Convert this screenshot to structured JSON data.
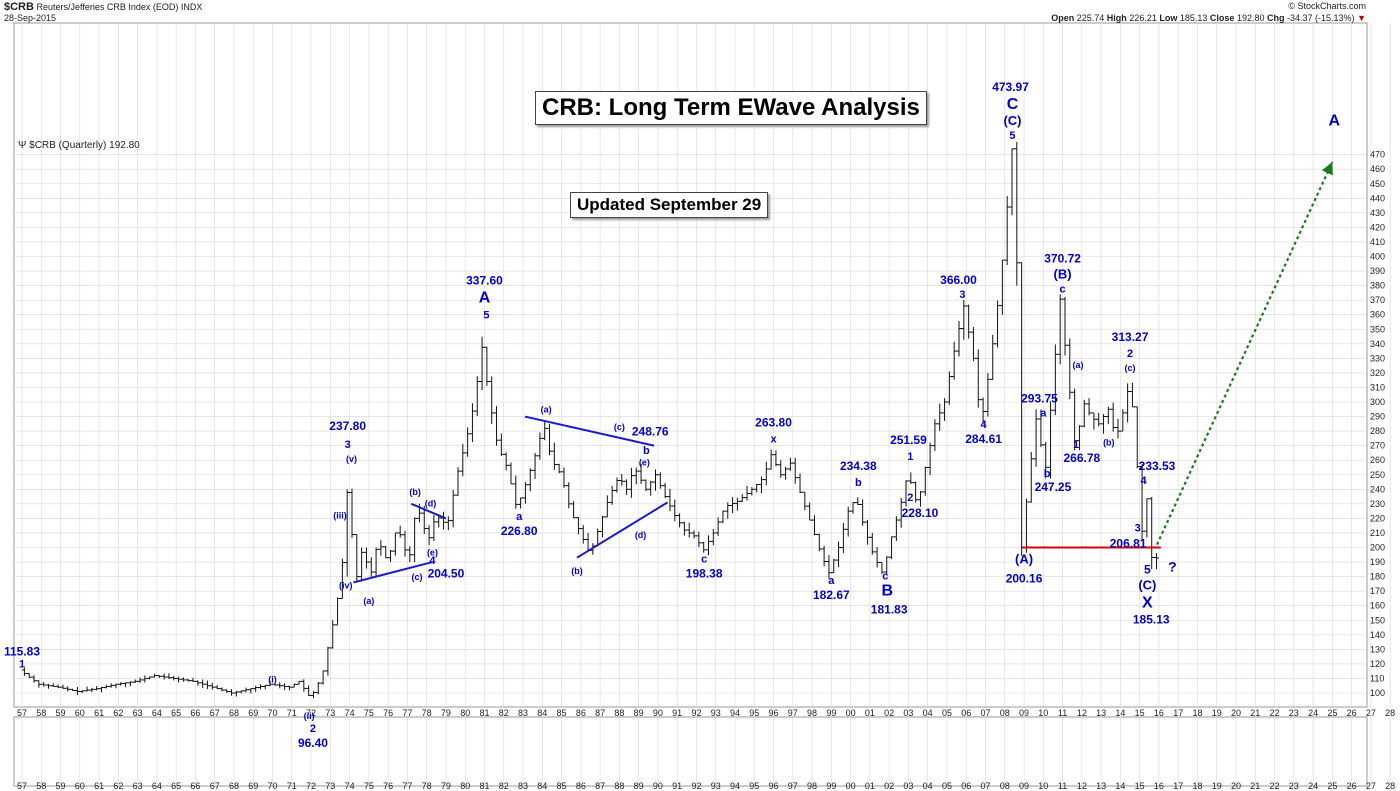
{
  "header": {
    "symbol": "$CRB",
    "name": "Reuters/Jefferies CRB Index (EOD)",
    "exchange": "INDX",
    "date": "28-Sep-2015",
    "copyright": "© StockCharts.com",
    "open_label": "Open",
    "open": "225.74",
    "high_label": "High",
    "high": "226.21",
    "low_label": "Low",
    "low": "185.13",
    "close_label": "Close",
    "close": "192.80",
    "chg_label": "Chg",
    "chg": "-34.37 (-15.13%)"
  },
  "legend_text": "$CRB (Quarterly) 192.80",
  "title_box": "CRB: Long Term EWave Analysis",
  "update_box": "Updated September 29",
  "colors": {
    "bars": "#111111",
    "labels": "#0000cc",
    "trendlines": "#1a1acc",
    "support": "#dd0000",
    "projection": "#1a7a1a",
    "grid": "#d8d8d8"
  },
  "chart_data": {
    "type": "ohlc",
    "ylim": [
      90,
      480
    ],
    "y_ticks": [
      100,
      110,
      120,
      130,
      140,
      150,
      160,
      170,
      180,
      190,
      200,
      210,
      220,
      230,
      240,
      250,
      260,
      270,
      280,
      290,
      300,
      310,
      320,
      330,
      340,
      350,
      360,
      370,
      380,
      390,
      400,
      410,
      420,
      430,
      440,
      450,
      460,
      470
    ],
    "x_ticks": [
      "57",
      "58",
      "59",
      "60",
      "61",
      "62",
      "63",
      "64",
      "65",
      "66",
      "67",
      "68",
      "69",
      "70",
      "71",
      "72",
      "73",
      "74",
      "75",
      "76",
      "77",
      "78",
      "79",
      "80",
      "81",
      "82",
      "83",
      "84",
      "85",
      "86",
      "87",
      "88",
      "89",
      "90",
      "91",
      "92",
      "93",
      "94",
      "95",
      "96",
      "97",
      "98",
      "99",
      "00",
      "01",
      "02",
      "03",
      "04",
      "05",
      "06",
      "07",
      "08",
      "09",
      "10",
      "11",
      "12",
      "13",
      "14",
      "15",
      "16",
      "17",
      "18",
      "19",
      "20",
      "21",
      "22",
      "23",
      "24",
      "25",
      "26",
      "27",
      "28"
    ],
    "price_path": [
      [
        1957.0,
        115.8
      ],
      [
        1958.0,
        106
      ],
      [
        1959.0,
        104
      ],
      [
        1960.0,
        101
      ],
      [
        1961.0,
        103
      ],
      [
        1962.0,
        106
      ],
      [
        1963.0,
        108
      ],
      [
        1964.0,
        112
      ],
      [
        1965.0,
        110
      ],
      [
        1966.0,
        108
      ],
      [
        1967.0,
        104
      ],
      [
        1968.0,
        100
      ],
      [
        1969.0,
        103
      ],
      [
        1970.0,
        106
      ],
      [
        1971.0,
        104
      ],
      [
        1971.5,
        108
      ],
      [
        1972.1,
        96.4
      ],
      [
        1972.7,
        112
      ],
      [
        1973.3,
        150
      ],
      [
        1973.7,
        180
      ],
      [
        1974.0,
        237.8
      ],
      [
        1974.5,
        180
      ],
      [
        1974.8,
        200
      ],
      [
        1975.2,
        180
      ],
      [
        1975.6,
        205
      ],
      [
        1976.1,
        190
      ],
      [
        1976.6,
        215
      ],
      [
        1977.2,
        190
      ],
      [
        1977.6,
        230
      ],
      [
        1978.2,
        204.5
      ],
      [
        1978.6,
        222
      ],
      [
        1979.2,
        215
      ],
      [
        1979.7,
        250
      ],
      [
        1980.2,
        275
      ],
      [
        1980.6,
        300
      ],
      [
        1981.0,
        337.6
      ],
      [
        1981.4,
        300
      ],
      [
        1981.8,
        270
      ],
      [
        1982.3,
        255
      ],
      [
        1982.8,
        226.8
      ],
      [
        1983.3,
        245
      ],
      [
        1983.8,
        265
      ],
      [
        1984.2,
        285
      ],
      [
        1984.6,
        260
      ],
      [
        1985.1,
        250
      ],
      [
        1985.6,
        225
      ],
      [
        1986.1,
        210
      ],
      [
        1986.6,
        195
      ],
      [
        1987.1,
        215
      ],
      [
        1987.6,
        235
      ],
      [
        1988.1,
        248.8
      ],
      [
        1988.5,
        240
      ],
      [
        1988.9,
        255
      ],
      [
        1989.5,
        240
      ],
      [
        1990.0,
        250
      ],
      [
        1990.5,
        235
      ],
      [
        1991.0,
        222
      ],
      [
        1991.5,
        212
      ],
      [
        1992.0,
        208
      ],
      [
        1992.5,
        198.4
      ],
      [
        1993.0,
        210
      ],
      [
        1993.6,
        228
      ],
      [
        1994.3,
        232
      ],
      [
        1995.0,
        240
      ],
      [
        1995.6,
        248
      ],
      [
        1996.0,
        263.8
      ],
      [
        1996.5,
        250
      ],
      [
        1997.0,
        258
      ],
      [
        1997.5,
        238
      ],
      [
        1998.1,
        215
      ],
      [
        1998.6,
        195
      ],
      [
        1999.0,
        182.7
      ],
      [
        1999.5,
        200
      ],
      [
        2000.0,
        225
      ],
      [
        2000.4,
        234.4
      ],
      [
        2000.8,
        215
      ],
      [
        2001.3,
        195
      ],
      [
        2001.8,
        181.8
      ],
      [
        2002.2,
        205
      ],
      [
        2002.7,
        228.1
      ],
      [
        2003.1,
        251.6
      ],
      [
        2003.6,
        228.1
      ],
      [
        2004.0,
        255
      ],
      [
        2004.5,
        285
      ],
      [
        2005.0,
        300
      ],
      [
        2005.5,
        335
      ],
      [
        2006.0,
        366
      ],
      [
        2006.5,
        330
      ],
      [
        2006.9,
        284.6
      ],
      [
        2007.3,
        320
      ],
      [
        2007.7,
        360
      ],
      [
        2008.1,
        410
      ],
      [
        2008.5,
        474
      ],
      [
        2008.8,
        380
      ],
      [
        2009.0,
        200.2
      ],
      [
        2009.4,
        250
      ],
      [
        2009.8,
        293.8
      ],
      [
        2010.2,
        247.3
      ],
      [
        2010.6,
        310
      ],
      [
        2011.0,
        370.7
      ],
      [
        2011.4,
        320
      ],
      [
        2011.8,
        266.8
      ],
      [
        2012.2,
        300
      ],
      [
        2012.6,
        290
      ],
      [
        2013.0,
        285
      ],
      [
        2013.5,
        295
      ],
      [
        2013.9,
        275
      ],
      [
        2014.3,
        295
      ],
      [
        2014.6,
        313.3
      ],
      [
        2014.9,
        280
      ],
      [
        2015.2,
        206.8
      ],
      [
        2015.5,
        233.5
      ],
      [
        2015.8,
        185.1
      ],
      [
        2015.9,
        192.8
      ]
    ]
  },
  "annotations": [
    {
      "text": "115.83",
      "x": 1957.0,
      "y": 116,
      "dy": -14,
      "size": 12
    },
    {
      "text": "1",
      "x": 1957.0,
      "y": 116,
      "dy": -2,
      "size": 11
    },
    {
      "text": "(i)",
      "x": 1970.0,
      "y": 106,
      "dy": -2,
      "size": 9
    },
    {
      "text": "(ii)",
      "x": 1971.9,
      "y": 96,
      "dy": 20,
      "size": 9
    },
    {
      "text": "2",
      "x": 1972.1,
      "y": 96,
      "dy": 33,
      "size": 11
    },
    {
      "text": "96.40",
      "x": 1972.1,
      "y": 96,
      "dy": 48,
      "size": 12
    },
    {
      "text": "237.80",
      "x": 1973.9,
      "y": 238,
      "dy": -62,
      "size": 12
    },
    {
      "text": "3",
      "x": 1973.9,
      "y": 238,
      "dy": -44,
      "size": 11
    },
    {
      "text": "(v)",
      "x": 1974.1,
      "y": 238,
      "dy": -30,
      "size": 9
    },
    {
      "text": "(iii)",
      "x": 1973.5,
      "y": 213,
      "dy": -10,
      "size": 9
    },
    {
      "text": "(iv)",
      "x": 1973.8,
      "y": 180,
      "dy": 12,
      "size": 9
    },
    {
      "text": "(a)",
      "x": 1975.0,
      "y": 175,
      "dy": 20,
      "size": 9
    },
    {
      "text": "(b)",
      "x": 1977.4,
      "y": 228,
      "dy": -12,
      "size": 9
    },
    {
      "text": "(c)",
      "x": 1977.5,
      "y": 190,
      "dy": 18,
      "size": 9
    },
    {
      "text": "(d)",
      "x": 1978.2,
      "y": 224,
      "dy": -6,
      "size": 9
    },
    {
      "text": "(e)",
      "x": 1978.3,
      "y": 200,
      "dy": 8,
      "size": 9
    },
    {
      "text": "4",
      "x": 1978.3,
      "y": 190,
      "dy": 2,
      "size": 11
    },
    {
      "text": "204.50",
      "x": 1979.0,
      "y": 182,
      "dy": 4,
      "size": 12
    },
    {
      "text": "337.60",
      "x": 1981.0,
      "y": 338,
      "dy": -62,
      "size": 12
    },
    {
      "text": "A",
      "x": 1981.0,
      "y": 338,
      "dy": -44,
      "size": 16
    },
    {
      "text": "5",
      "x": 1981.1,
      "y": 338,
      "dy": -28,
      "size": 11
    },
    {
      "text": "a",
      "x": 1982.8,
      "y": 227,
      "dy": 12,
      "size": 11
    },
    {
      "text": "226.80",
      "x": 1982.8,
      "y": 227,
      "dy": 27,
      "size": 12
    },
    {
      "text": "(a)",
      "x": 1984.2,
      "y": 290,
      "dy": -4,
      "size": 9
    },
    {
      "text": "(c)",
      "x": 1988.0,
      "y": 278,
      "dy": -4,
      "size": 9
    },
    {
      "text": "248.76",
      "x": 1989.6,
      "y": 277,
      "dy": 0,
      "size": 12
    },
    {
      "text": "b",
      "x": 1989.4,
      "y": 263,
      "dy": -2,
      "size": 11
    },
    {
      "text": "(e)",
      "x": 1989.3,
      "y": 255,
      "dy": -2,
      "size": 9
    },
    {
      "text": "(b)",
      "x": 1985.8,
      "y": 190,
      "dy": 12,
      "size": 9
    },
    {
      "text": "(d)",
      "x": 1989.1,
      "y": 208,
      "dy": 2,
      "size": 9
    },
    {
      "text": "c",
      "x": 1992.4,
      "y": 198,
      "dy": 12,
      "size": 11
    },
    {
      "text": "198.38",
      "x": 1992.4,
      "y": 198,
      "dy": 27,
      "size": 12
    },
    {
      "text": "263.80",
      "x": 1996.0,
      "y": 264,
      "dy": -28,
      "size": 12
    },
    {
      "text": "x",
      "x": 1996.0,
      "y": 264,
      "dy": -12,
      "size": 11
    },
    {
      "text": "234.38",
      "x": 2000.4,
      "y": 234,
      "dy": -28,
      "size": 12
    },
    {
      "text": "b",
      "x": 2000.4,
      "y": 234,
      "dy": -12,
      "size": 11
    },
    {
      "text": "a",
      "x": 1999.0,
      "y": 183,
      "dy": 12,
      "size": 11
    },
    {
      "text": "182.67",
      "x": 1999.0,
      "y": 183,
      "dy": 27,
      "size": 12
    },
    {
      "text": "c",
      "x": 2001.8,
      "y": 182,
      "dy": 6,
      "size": 11
    },
    {
      "text": "B",
      "x": 2001.9,
      "y": 182,
      "dy": 22,
      "size": 16
    },
    {
      "text": "181.83",
      "x": 2002.0,
      "y": 182,
      "dy": 40,
      "size": 12
    },
    {
      "text": "251.59",
      "x": 2003.0,
      "y": 252,
      "dy": -28,
      "size": 12
    },
    {
      "text": "1",
      "x": 2003.1,
      "y": 252,
      "dy": -12,
      "size": 11
    },
    {
      "text": "2",
      "x": 2003.1,
      "y": 228,
      "dy": -6,
      "size": 11
    },
    {
      "text": "228.10",
      "x": 2003.6,
      "y": 228,
      "dy": 10,
      "size": 12
    },
    {
      "text": "366.00",
      "x": 2005.6,
      "y": 366,
      "dy": -22,
      "size": 12
    },
    {
      "text": "3",
      "x": 2005.8,
      "y": 366,
      "dy": -8,
      "size": 11
    },
    {
      "text": "4",
      "x": 2006.9,
      "y": 285,
      "dy": 4,
      "size": 11
    },
    {
      "text": "284.61",
      "x": 2006.9,
      "y": 285,
      "dy": 19,
      "size": 12
    },
    {
      "text": "473.97",
      "x": 2008.3,
      "y": 474,
      "dy": -58,
      "size": 12
    },
    {
      "text": "C",
      "x": 2008.4,
      "y": 474,
      "dy": -40,
      "size": 16
    },
    {
      "text": "(C)",
      "x": 2008.4,
      "y": 474,
      "dy": -24,
      "size": 13
    },
    {
      "text": "5",
      "x": 2008.4,
      "y": 474,
      "dy": -10,
      "size": 11
    },
    {
      "text": "(A)",
      "x": 2009.0,
      "y": 200,
      "dy": 16,
      "size": 13
    },
    {
      "text": "200.16",
      "x": 2009.0,
      "y": 200,
      "dy": 35,
      "size": 12
    },
    {
      "text": "293.75",
      "x": 2009.8,
      "y": 294,
      "dy": -8,
      "size": 12
    },
    {
      "text": "a",
      "x": 2010.0,
      "y": 294,
      "dy": 6,
      "size": 11
    },
    {
      "text": "b",
      "x": 2010.2,
      "y": 247,
      "dy": -2,
      "size": 11
    },
    {
      "text": "247.25",
      "x": 2010.5,
      "y": 247,
      "dy": 12,
      "size": 12
    },
    {
      "text": "370.72",
      "x": 2011.0,
      "y": 371,
      "dy": -36,
      "size": 12
    },
    {
      "text": "(B)",
      "x": 2011.0,
      "y": 371,
      "dy": -20,
      "size": 13
    },
    {
      "text": "c",
      "x": 2011.0,
      "y": 371,
      "dy": -6,
      "size": 11
    },
    {
      "text": "(a)",
      "x": 2011.8,
      "y": 322,
      "dy": -2,
      "size": 9
    },
    {
      "text": "1",
      "x": 2011.7,
      "y": 267,
      "dy": -2,
      "size": 11
    },
    {
      "text": "266.78",
      "x": 2012.0,
      "y": 267,
      "dy": 12,
      "size": 12
    },
    {
      "text": "(b)",
      "x": 2013.4,
      "y": 273,
      "dy": 4,
      "size": 9
    },
    {
      "text": "313.27",
      "x": 2014.5,
      "y": 313,
      "dy": -42,
      "size": 12
    },
    {
      "text": "2",
      "x": 2014.5,
      "y": 313,
      "dy": -26,
      "size": 11
    },
    {
      "text": "(c)",
      "x": 2014.5,
      "y": 313,
      "dy": -12,
      "size": 9
    },
    {
      "text": "4",
      "x": 2015.2,
      "y": 234,
      "dy": -14,
      "size": 11
    },
    {
      "text": "233.53",
      "x": 2015.9,
      "y": 234,
      "dy": -28,
      "size": 12
    },
    {
      "text": "3",
      "x": 2014.9,
      "y": 207,
      "dy": -6,
      "size": 11
    },
    {
      "text": "206.81",
      "x": 2014.4,
      "y": 207,
      "dy": 10,
      "size": 12
    },
    {
      "text": "5",
      "x": 2015.4,
      "y": 185,
      "dy": 4,
      "size": 12
    },
    {
      "text": "?",
      "x": 2016.7,
      "y": 185,
      "dy": 2,
      "size": 14
    },
    {
      "text": "(C)",
      "x": 2015.4,
      "y": 185,
      "dy": 20,
      "size": 13
    },
    {
      "text": "X",
      "x": 2015.4,
      "y": 185,
      "dy": 38,
      "size": 16
    },
    {
      "text": "185.13",
      "x": 2015.6,
      "y": 185,
      "dy": 54,
      "size": 12
    },
    {
      "text": "A",
      "x": 2025.1,
      "y": 490,
      "dy": 0,
      "size": 16
    }
  ],
  "trendlines": [
    {
      "from": [
        1974.2,
        176
      ],
      "to": [
        1978.3,
        190
      ],
      "color": "trendlines"
    },
    {
      "from": [
        1977.2,
        230
      ],
      "to": [
        1979.0,
        220
      ],
      "color": "trendlines"
    },
    {
      "from": [
        1983.1,
        290
      ],
      "to": [
        1989.8,
        270
      ],
      "color": "trendlines"
    },
    {
      "from": [
        1985.8,
        193
      ],
      "to": [
        1990.5,
        231
      ],
      "color": "trendlines"
    }
  ],
  "support_line": {
    "from": [
      2008.9,
      200
    ],
    "to": [
      2016.1,
      200
    ]
  },
  "projection": {
    "from": [
      2015.9,
      202
    ],
    "to": [
      2025.0,
      465
    ]
  }
}
